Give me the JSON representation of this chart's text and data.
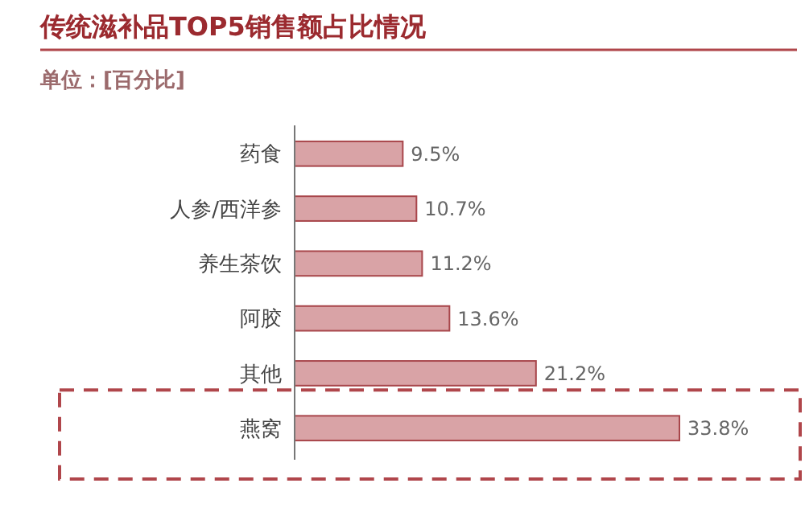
{
  "chart_data": {
    "type": "bar",
    "orientation": "horizontal",
    "title": "传统滋补品TOP5销售额占比情况",
    "subtitle": "单位：[百分比]",
    "categories": [
      "药食",
      "人参/西洋参",
      "养生茶饮",
      "阿胶",
      "其他",
      "燕窝"
    ],
    "series": [
      {
        "color": "#d9a3a6",
        "values": [
          9.5,
          10.7,
          11.2,
          13.6,
          21.2,
          33.8
        ],
        "value_labels": [
          "9.5%",
          "10.7%",
          "11.2%",
          "13.6%",
          "21.2%",
          "33.8%"
        ]
      }
    ]
  }
}
